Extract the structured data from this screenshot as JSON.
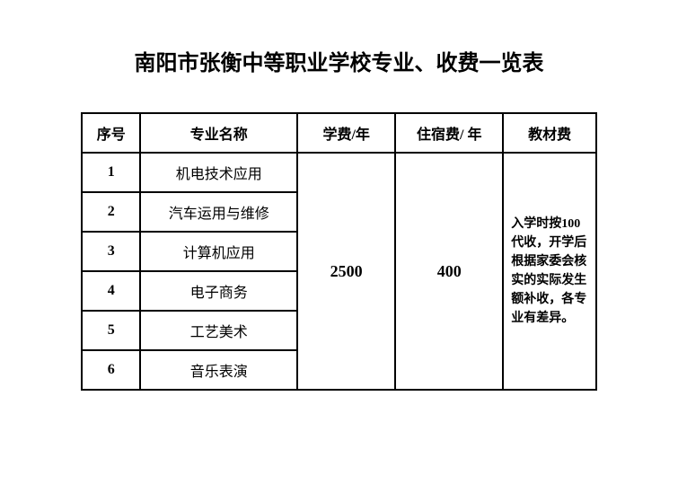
{
  "title": "南阳市张衡中等职业学校专业、收费一览表",
  "table": {
    "headers": {
      "index": "序号",
      "major": "专业名称",
      "tuition": "学费/年",
      "dorm": "住宿费/ 年",
      "textbook": "教材费"
    },
    "rows": [
      {
        "index": "1",
        "major": "机电技术应用"
      },
      {
        "index": "2",
        "major": "汽车运用与维修"
      },
      {
        "index": "3",
        "major": "计算机应用"
      },
      {
        "index": "4",
        "major": "电子商务"
      },
      {
        "index": "5",
        "major": "工艺美术"
      },
      {
        "index": "6",
        "major": "音乐表演"
      }
    ],
    "tuition_fee": "2500",
    "dorm_fee": "400",
    "textbook_note": "入学时按100代收，开学后根据家委会核实的实际发生额补收，各专业有差异。"
  },
  "styles": {
    "background_color": "#ffffff",
    "text_color": "#000000",
    "border_color": "#000000",
    "title_fontsize": 24,
    "header_fontsize": 16,
    "cell_fontsize": 16,
    "note_fontsize": 14
  }
}
